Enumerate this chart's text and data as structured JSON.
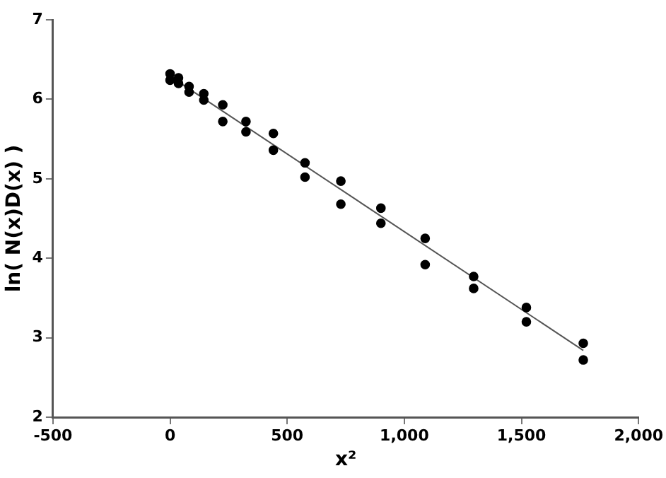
{
  "chart_data": {
    "type": "scatter",
    "xlabel": "x²",
    "ylabel": "ln( N(x)D(x) )",
    "xlim": [
      -500,
      2000
    ],
    "xticks": [
      {
        "value": -500,
        "label": "-500"
      },
      {
        "value": 0,
        "label": "0"
      },
      {
        "value": 500,
        "label": "500"
      },
      {
        "value": 1000,
        "label": "1,000"
      },
      {
        "value": 1500,
        "label": "1,500"
      },
      {
        "value": 2000,
        "label": "2,000"
      }
    ],
    "ylim": [
      2,
      7
    ],
    "yticks": [
      2,
      3,
      4,
      5,
      6,
      7
    ],
    "marker": "circle",
    "legend": false,
    "series": [
      {
        "color": "#000000",
        "x": [
          0,
          0,
          36,
          36,
          81,
          81,
          144,
          144,
          225,
          225,
          324,
          324,
          441,
          441,
          576,
          576,
          729,
          729,
          900,
          900,
          1089,
          1089,
          1296,
          1296,
          1521,
          1521,
          1764,
          1764
        ],
        "values": [
          6.32,
          6.24,
          6.27,
          6.2,
          6.16,
          6.09,
          6.07,
          5.99,
          5.93,
          5.72,
          5.72,
          5.59,
          5.57,
          5.36,
          5.2,
          5.02,
          4.97,
          4.68,
          4.63,
          4.44,
          4.25,
          3.92,
          3.77,
          3.62,
          3.38,
          3.2,
          2.93,
          2.72
        ]
      },
      {
        "type": "line",
        "color": "#555555",
        "marker": "none",
        "x": [
          0,
          1764
        ],
        "values": [
          6.29,
          2.84
        ]
      }
    ]
  }
}
